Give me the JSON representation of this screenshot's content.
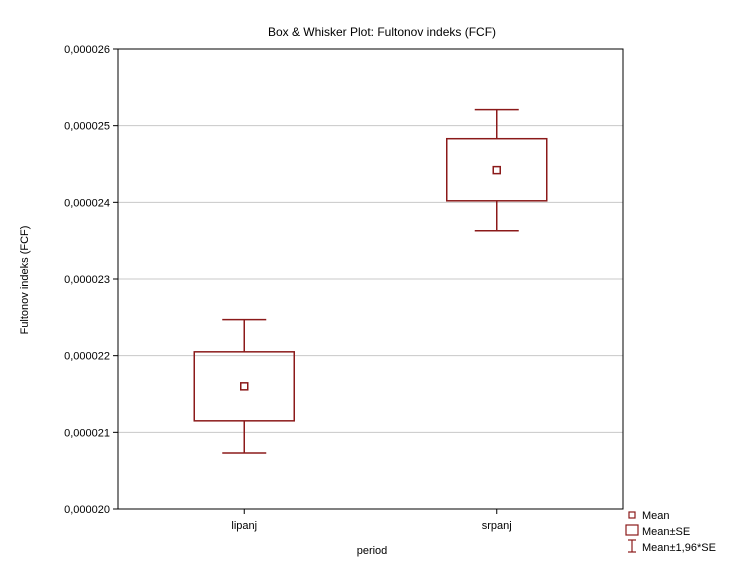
{
  "chart_data": {
    "type": "box",
    "title": "Box & Whisker Plot: Fultonov indeks (FCF)",
    "xlabel": "period",
    "ylabel": "Fultonov indeks (FCF)",
    "categories": [
      "lipanj",
      "srpanj"
    ],
    "ylim": [
      2e-05,
      2.6e-05
    ],
    "yticks": [
      2e-05,
      2.1e-05,
      2.2e-05,
      2.3e-05,
      2.4e-05,
      2.5e-05,
      2.6e-05
    ],
    "ytick_labels": [
      "0,000020",
      "0,000021",
      "0,000022",
      "0,000023",
      "0,000024",
      "0,000025",
      "0,000026"
    ],
    "grid": true,
    "series": [
      {
        "category": "lipanj",
        "mean": 2.16e-05,
        "se_low": 2.115e-05,
        "se_high": 2.205e-05,
        "ci_low": 2.073e-05,
        "ci_high": 2.247e-05
      },
      {
        "category": "srpanj",
        "mean": 2.442e-05,
        "se_low": 2.402e-05,
        "se_high": 2.483e-05,
        "ci_low": 2.363e-05,
        "ci_high": 2.521e-05
      }
    ],
    "legend": {
      "position": "bottom-right",
      "items": [
        "Mean",
        "Mean±SE",
        "Mean±1,96*SE"
      ]
    },
    "color": "#8b1a1a"
  }
}
